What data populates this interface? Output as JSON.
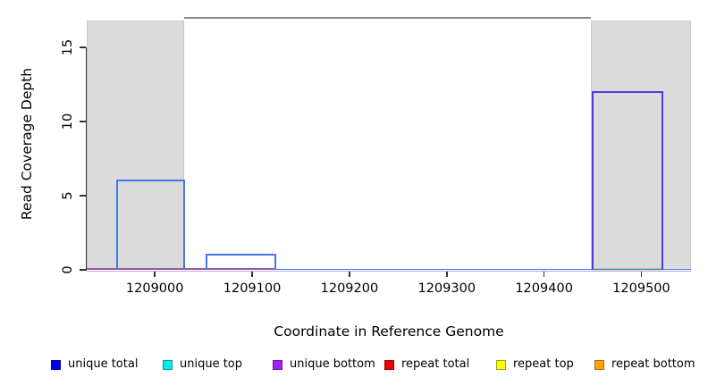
{
  "chart_data": {
    "type": "area",
    "title": "",
    "xlabel": "Coordinate in Reference Genome",
    "ylabel": "Read Coverage Depth",
    "xlim": [
      1208930,
      1209551
    ],
    "ylim": [
      0,
      17
    ],
    "x_ticks": [
      "1209000",
      "1209100",
      "1209200",
      "1209300",
      "1209400",
      "1209500"
    ],
    "x_tick_values": [
      1209000,
      1209100,
      1209200,
      1209300,
      1209400,
      1209500
    ],
    "y_ticks": [
      "0",
      "5",
      "10",
      "15"
    ],
    "y_tick_values": [
      0,
      5,
      10,
      15
    ],
    "grid": false,
    "legend_position": "bottom",
    "repeat_regions": [
      {
        "start": 1208930,
        "end": 1209030
      },
      {
        "start": 1209448,
        "end": 1209551
      }
    ],
    "top_clip_line": {
      "start": 1209030,
      "end": 1209448,
      "y": 17,
      "color": "#8b8b8b"
    },
    "coverage_boxes": [
      {
        "series": "unique total",
        "color": "#4477ee",
        "start": 1208961,
        "end": 1209030,
        "depth": 6
      },
      {
        "series": "unique total",
        "color": "#4477ee",
        "start": 1209053,
        "end": 1209124,
        "depth": 1
      },
      {
        "series": "unique bottom",
        "color": "#5a35dd",
        "start": 1209450,
        "end": 1209522,
        "depth": 12
      }
    ],
    "baseline_segments": [
      {
        "series": "unique bottom",
        "color": "#bca6f2",
        "start": 1208930,
        "end": 1209551,
        "depth": 0,
        "dy": 2
      },
      {
        "series": "unique total",
        "color": "#4477ee",
        "start": 1208930,
        "end": 1209551,
        "depth": 0,
        "dy": 0
      },
      {
        "series": "repeat top",
        "color": "#ede6a8",
        "start": 1209450,
        "end": 1209522,
        "depth": 0,
        "dy": 1
      },
      {
        "series": "repeat total",
        "color": "#e04444",
        "start": 1208930,
        "end": 1209124,
        "depth": 0,
        "dy": -1
      },
      {
        "series": "unique top",
        "color": "#98d898",
        "start": 1209450,
        "end": 1209522,
        "depth": 0,
        "dy": -1
      }
    ],
    "legend": [
      {
        "label": "unique total",
        "fill": "#0000ee",
        "border": "#0000a0"
      },
      {
        "label": "unique top",
        "fill": "#00eeee",
        "border": "#009898"
      },
      {
        "label": "unique bottom",
        "fill": "#a020f0",
        "border": "#6a14a0"
      },
      {
        "label": "repeat total",
        "fill": "#ee0000",
        "border": "#a00000"
      },
      {
        "label": "repeat top",
        "fill": "#ffff00",
        "border": "#a0a000"
      },
      {
        "label": "repeat bottom",
        "fill": "#ffa500",
        "border": "#a06a00"
      }
    ]
  },
  "axis_color": "#333333"
}
